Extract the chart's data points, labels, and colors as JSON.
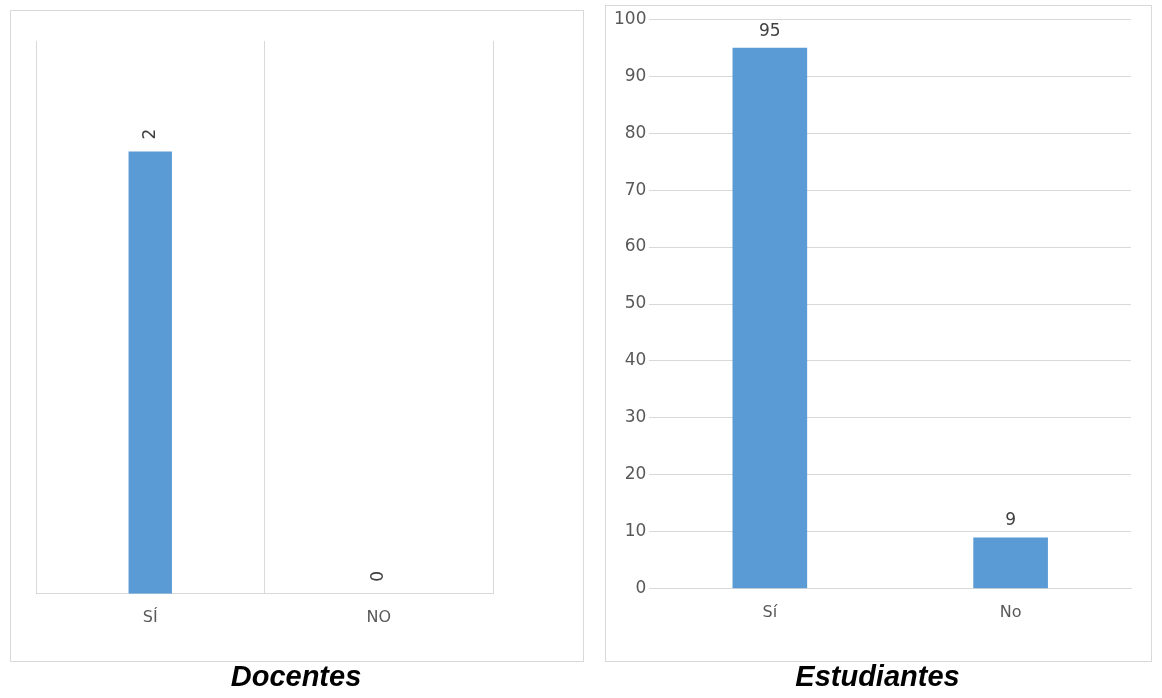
{
  "chart_data": [
    {
      "type": "bar",
      "title": "Docentes",
      "categories": [
        "SÍ",
        "NO"
      ],
      "values": [
        2,
        0
      ],
      "color": "#5b9bd5",
      "ylim": [
        0,
        2.5
      ],
      "data_labels": true,
      "grid": "x",
      "tick_labels": "x"
    },
    {
      "type": "bar",
      "title": "Estudiantes",
      "categories": [
        "Sí",
        "No"
      ],
      "values": [
        95,
        9
      ],
      "color": "#5b9bd5",
      "ylim": [
        0,
        100
      ],
      "yticks": [
        0,
        10,
        20,
        30,
        40,
        50,
        60,
        70,
        80,
        90,
        100
      ],
      "data_labels": true,
      "grid": "y"
    }
  ]
}
